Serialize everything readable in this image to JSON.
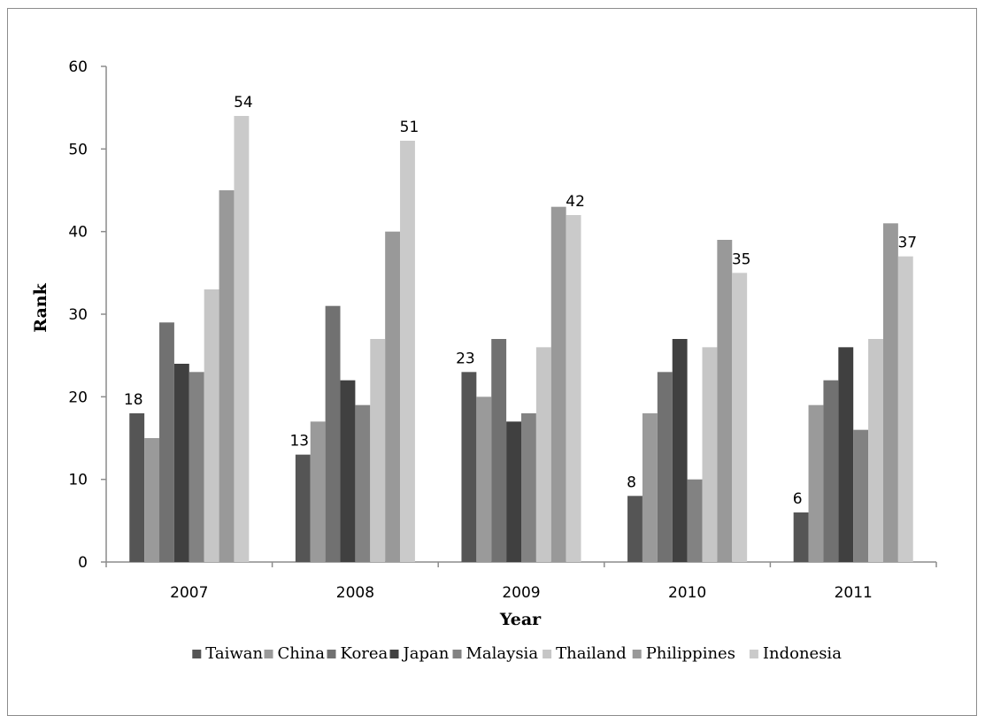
{
  "chart_data": {
    "type": "bar",
    "title": "",
    "xlabel": "Year",
    "ylabel": "Rank",
    "ylim": [
      0,
      60
    ],
    "yticks": [
      "0",
      "10",
      "20",
      "30",
      "40",
      "50",
      "60"
    ],
    "categories": [
      "2007",
      "2008",
      "2009",
      "2010",
      "2011"
    ],
    "grid": false,
    "legend_position": "bottom",
    "series": [
      {
        "name": "Taiwan",
        "color": "#555555",
        "values": [
          18,
          13,
          23,
          8,
          6
        ],
        "labels": [
          "18",
          "13",
          "23",
          "8",
          "6"
        ]
      },
      {
        "name": "China",
        "color": "#9a9a9a",
        "values": [
          15,
          17,
          20,
          18,
          19
        ]
      },
      {
        "name": "Korea",
        "color": "#717171",
        "values": [
          29,
          31,
          27,
          23,
          22
        ]
      },
      {
        "name": "Japan",
        "color": "#404040",
        "values": [
          24,
          22,
          17,
          27,
          26
        ]
      },
      {
        "name": "Malaysia",
        "color": "#828282",
        "values": [
          23,
          19,
          18,
          10,
          16
        ]
      },
      {
        "name": "Thailand",
        "color": "#c6c6c6",
        "values": [
          33,
          27,
          26,
          26,
          27
        ]
      },
      {
        "name": "Philippines",
        "color": "#999999",
        "values": [
          45,
          40,
          43,
          39,
          41
        ]
      },
      {
        "name": "Indonesia",
        "color": "#cacaca",
        "values": [
          54,
          51,
          42,
          35,
          37
        ],
        "labels": [
          "54",
          "51",
          "42",
          "35",
          "37"
        ]
      }
    ]
  }
}
